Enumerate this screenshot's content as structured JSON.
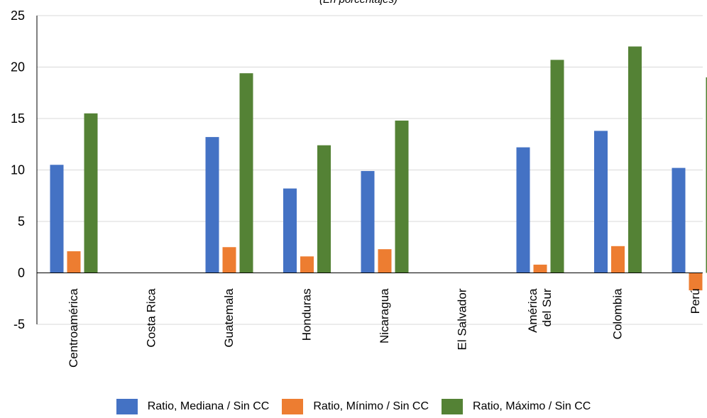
{
  "chart_data": {
    "type": "bar",
    "subtitle": "(En porcentajes)",
    "categories": [
      "Centroamérica",
      "Costa Rica",
      "Guatemala",
      "Honduras",
      "Nicaragua",
      "El Salvador",
      "América del Sur",
      "Colombia",
      "Perú"
    ],
    "category_lines": [
      [
        "Centroamérica"
      ],
      [
        "Costa Rica"
      ],
      [
        "Guatemala"
      ],
      [
        "Honduras"
      ],
      [
        "Nicaragua"
      ],
      [
        "El Salvador"
      ],
      [
        "América",
        "del Sur"
      ],
      [
        "Colombia"
      ],
      [
        "Perú"
      ]
    ],
    "series": [
      {
        "name": "Ratio, Mediana / Sin CC",
        "color": "#4472C4",
        "values": [
          10.5,
          null,
          13.2,
          8.2,
          9.9,
          null,
          12.2,
          13.8,
          10.2
        ]
      },
      {
        "name": "Ratio, Mínimo / Sin CC",
        "color": "#ED7D31",
        "values": [
          2.1,
          null,
          2.5,
          1.6,
          2.3,
          null,
          0.8,
          2.6,
          -1.7
        ]
      },
      {
        "name": "Ratio, Máximo / Sin CC",
        "color": "#548235",
        "values": [
          15.5,
          null,
          19.4,
          12.4,
          14.8,
          null,
          20.7,
          22.0,
          19.0
        ]
      }
    ],
    "yticks": [
      -5,
      0,
      5,
      10,
      15,
      20,
      25
    ],
    "ylim": [
      -5,
      25
    ],
    "grid": true,
    "legend_position": "bottom"
  }
}
